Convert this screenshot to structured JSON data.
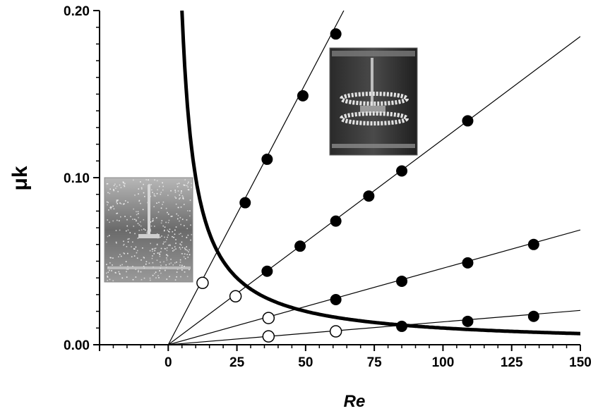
{
  "chart_data": {
    "type": "scatter",
    "xlabel": "Re",
    "ylabel": "μk",
    "xlim": [
      -25,
      150
    ],
    "ylim": [
      0,
      0.2
    ],
    "x_ticks": [
      0,
      25,
      50,
      75,
      100,
      125,
      150
    ],
    "x_tick_labels": [
      "0",
      "25",
      "50",
      "75",
      "100",
      "125",
      "150"
    ],
    "y_ticks": [
      0,
      0.1,
      0.2
    ],
    "y_tick_labels": [
      "0.00",
      "0.10",
      "0.20"
    ],
    "grid": false,
    "series": [
      {
        "line_slope": 0.00313,
        "filled": [
          [
            28,
            0.085
          ],
          [
            36,
            0.111
          ],
          [
            49,
            0.149
          ],
          [
            61,
            0.186
          ]
        ],
        "open": [
          [
            12.5,
            0.037
          ]
        ]
      },
      {
        "line_slope": 0.00123,
        "filled": [
          [
            36,
            0.044
          ],
          [
            48,
            0.059
          ],
          [
            61,
            0.074
          ],
          [
            73,
            0.089
          ],
          [
            85,
            0.104
          ],
          [
            109,
            0.134
          ]
        ],
        "open": [
          [
            24.5,
            0.029
          ]
        ]
      },
      {
        "line_slope": 0.000458,
        "filled": [
          [
            61,
            0.027
          ],
          [
            85,
            0.038
          ],
          [
            109,
            0.049
          ],
          [
            133,
            0.06
          ]
        ],
        "open": [
          [
            36.5,
            0.016
          ]
        ]
      },
      {
        "line_slope": 0.000137,
        "filled": [
          [
            85,
            0.011
          ],
          [
            109,
            0.014
          ],
          [
            133,
            0.017
          ]
        ],
        "open": [
          [
            36.5,
            0.005
          ],
          [
            61,
            0.008
          ]
        ]
      }
    ],
    "boundary_curve": {
      "form": "mu_k = a / Re",
      "a": 1.0,
      "x_range": [
        5,
        150
      ]
    },
    "insets": [
      {
        "content": "photo of a cylindrical vessel with a vertical shaft and particles dispersed uniformly throughout the liquid",
        "placement": "left, near y = 0.04-0.10"
      },
      {
        "content": "photo of a cylindrical vessel with a shaft and particles gathered into two horizontal rings",
        "placement": "upper middle, near y = 0.113-0.178"
      }
    ]
  }
}
